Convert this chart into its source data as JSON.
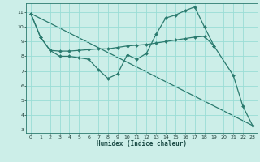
{
  "xlabel": "Humidex (Indice chaleur)",
  "background_color": "#cceee8",
  "grid_color": "#99ddd5",
  "line_color": "#2a7a6e",
  "xlim": [
    -0.5,
    23.5
  ],
  "ylim": [
    2.8,
    11.6
  ],
  "yticks": [
    3,
    4,
    5,
    6,
    7,
    8,
    9,
    10,
    11
  ],
  "xticks": [
    0,
    1,
    2,
    3,
    4,
    5,
    6,
    7,
    8,
    9,
    10,
    11,
    12,
    13,
    14,
    15,
    16,
    17,
    18,
    19,
    20,
    21,
    22,
    23
  ],
  "line1_x": [
    0,
    1,
    2,
    3,
    4,
    5,
    6,
    7,
    8,
    9,
    10,
    11,
    12,
    13,
    14,
    15,
    16,
    17,
    18,
    19,
    21,
    22,
    23
  ],
  "line1_y": [
    10.9,
    9.3,
    8.4,
    8.0,
    8.0,
    7.9,
    7.8,
    7.1,
    6.5,
    6.8,
    8.1,
    7.8,
    8.2,
    9.5,
    10.6,
    10.8,
    11.1,
    11.35,
    10.0,
    8.7,
    6.7,
    4.6,
    3.3
  ],
  "line2_x": [
    0,
    1,
    2,
    3,
    4,
    5,
    6,
    7,
    8,
    9,
    10,
    11,
    12,
    13,
    14,
    15,
    16,
    17,
    18,
    19
  ],
  "line2_y": [
    10.9,
    9.3,
    8.4,
    8.35,
    8.35,
    8.4,
    8.45,
    8.5,
    8.5,
    8.6,
    8.7,
    8.75,
    8.8,
    8.9,
    9.0,
    9.1,
    9.2,
    9.3,
    9.35,
    8.7
  ],
  "line3_x": [
    0,
    23
  ],
  "line3_y": [
    10.9,
    3.3
  ]
}
